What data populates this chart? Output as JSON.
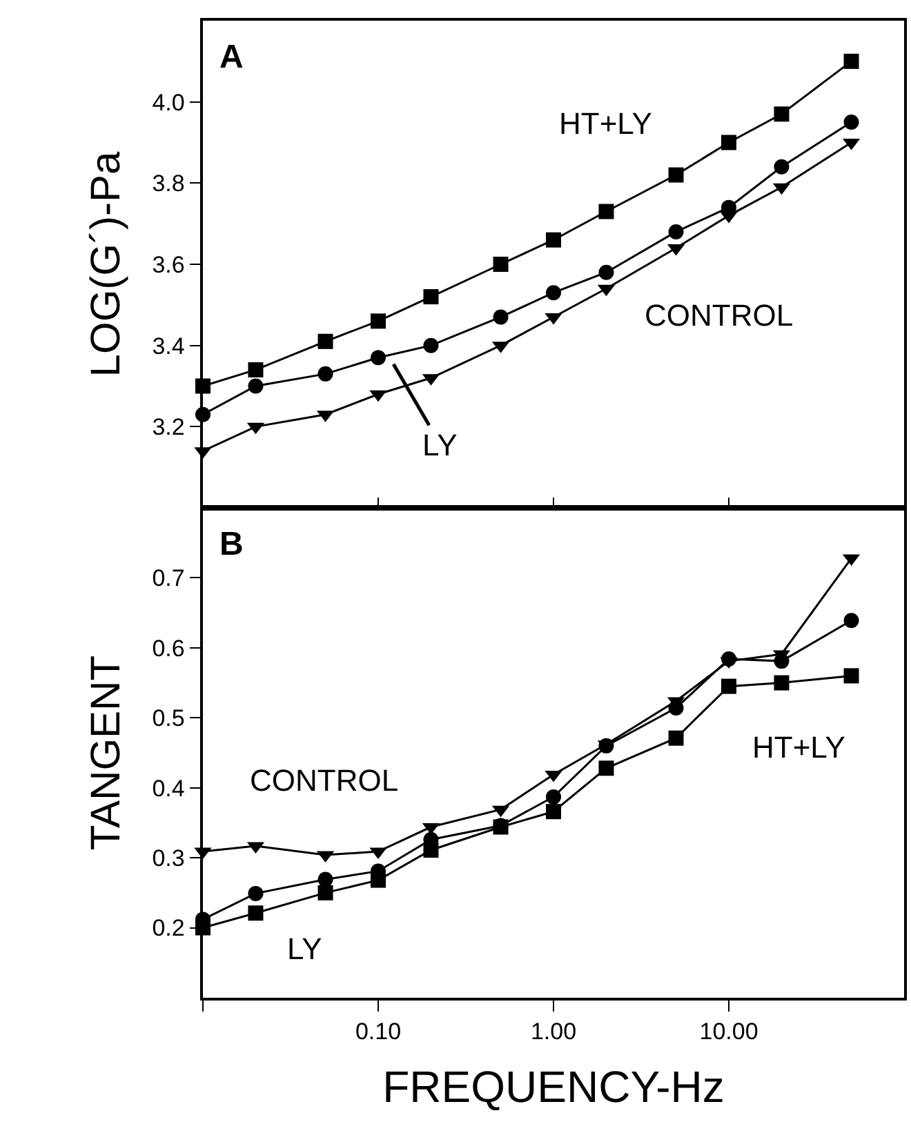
{
  "chart_data": [
    {
      "type": "line",
      "ylabel": "LOG(G´)-Pa",
      "x": [
        0.01,
        0.02,
        0.05,
        0.1,
        0.2,
        0.5,
        1,
        2,
        5,
        10,
        20,
        50
      ],
      "log": "x",
      "xlim": [
        0.01,
        100
      ],
      "xticks": [
        {
          "value": 0.01,
          "label": null
        },
        {
          "value": 0.1,
          "label": null
        },
        {
          "value": 1,
          "label": null
        },
        {
          "value": 10,
          "label": null
        }
      ],
      "ylim": [
        3.0,
        4.2
      ],
      "yticks": [
        {
          "value": 3.2,
          "label": "3.2"
        },
        {
          "value": 3.4,
          "label": "3.4"
        },
        {
          "value": 3.6,
          "label": "3.6"
        },
        {
          "value": 3.8,
          "label": "3.8"
        },
        {
          "value": 4.0,
          "label": "4.0"
        }
      ],
      "tick_labels": "y",
      "grid": false,
      "line_style": "solid",
      "series": [
        {
          "color": "#000000",
          "marker": "square",
          "values": [
            3.3,
            3.34,
            3.41,
            3.46,
            3.52,
            3.6,
            3.66,
            3.73,
            3.82,
            3.9,
            3.97,
            4.1
          ]
        },
        {
          "color": "#000000",
          "marker": "circle",
          "values": [
            3.23,
            3.3,
            3.33,
            3.37,
            3.4,
            3.47,
            3.53,
            3.58,
            3.68,
            3.74,
            3.84,
            3.95
          ]
        },
        {
          "color": "#000000",
          "marker": "triangle",
          "values": [
            3.14,
            3.2,
            3.23,
            3.28,
            3.32,
            3.4,
            3.47,
            3.54,
            3.64,
            3.72,
            3.79,
            3.9
          ]
        }
      ],
      "annotations": [
        "A",
        "HT+LY",
        "CONTROL",
        {
          "text": "LY",
          "x": 0.12,
          "y": 3.36
        }
      ]
    },
    {
      "type": "line",
      "xlabel": "FREQUENCY-Hz",
      "ylabel": "TANGENT",
      "x": [
        0.01,
        0.02,
        0.05,
        0.1,
        0.2,
        0.5,
        1,
        2,
        5,
        10,
        20,
        50
      ],
      "log": "x",
      "xlim": [
        0.01,
        100
      ],
      "xticks": [
        {
          "value": 0.01,
          "label": null
        },
        {
          "value": 0.1,
          "label": "0.10"
        },
        {
          "value": 1,
          "label": "1.00"
        },
        {
          "value": 10,
          "label": "10.00"
        }
      ],
      "ylim": [
        0.1,
        0.8
      ],
      "yticks": [
        {
          "value": 0.2,
          "label": "0.2"
        },
        {
          "value": 0.3,
          "label": "0.3"
        },
        {
          "value": 0.4,
          "label": "0.4"
        },
        {
          "value": 0.5,
          "label": "0.5"
        },
        {
          "value": 0.6,
          "label": "0.6"
        },
        {
          "value": 0.7,
          "label": "0.7"
        }
      ],
      "grid": false,
      "line_style": "solid",
      "series": [
        {
          "color": "#000000",
          "marker": "square",
          "values": [
            0.2,
            0.221,
            0.25,
            0.268,
            0.311,
            0.344,
            0.366,
            0.428,
            0.471,
            0.545,
            0.55,
            0.56
          ]
        },
        {
          "color": "#000000",
          "marker": "circle",
          "values": [
            0.212,
            0.249,
            0.269,
            0.281,
            0.326,
            0.346,
            0.387,
            0.46,
            0.514,
            0.584,
            0.581,
            0.639
          ]
        },
        {
          "color": "#000000",
          "marker": "triangle",
          "values": [
            0.309,
            0.317,
            0.304,
            0.309,
            0.344,
            0.369,
            0.419,
            0.462,
            0.524,
            0.581,
            0.591,
            0.728
          ]
        }
      ],
      "annotations": [
        "B",
        "CONTROL",
        "HT+LY",
        "LY"
      ]
    }
  ]
}
